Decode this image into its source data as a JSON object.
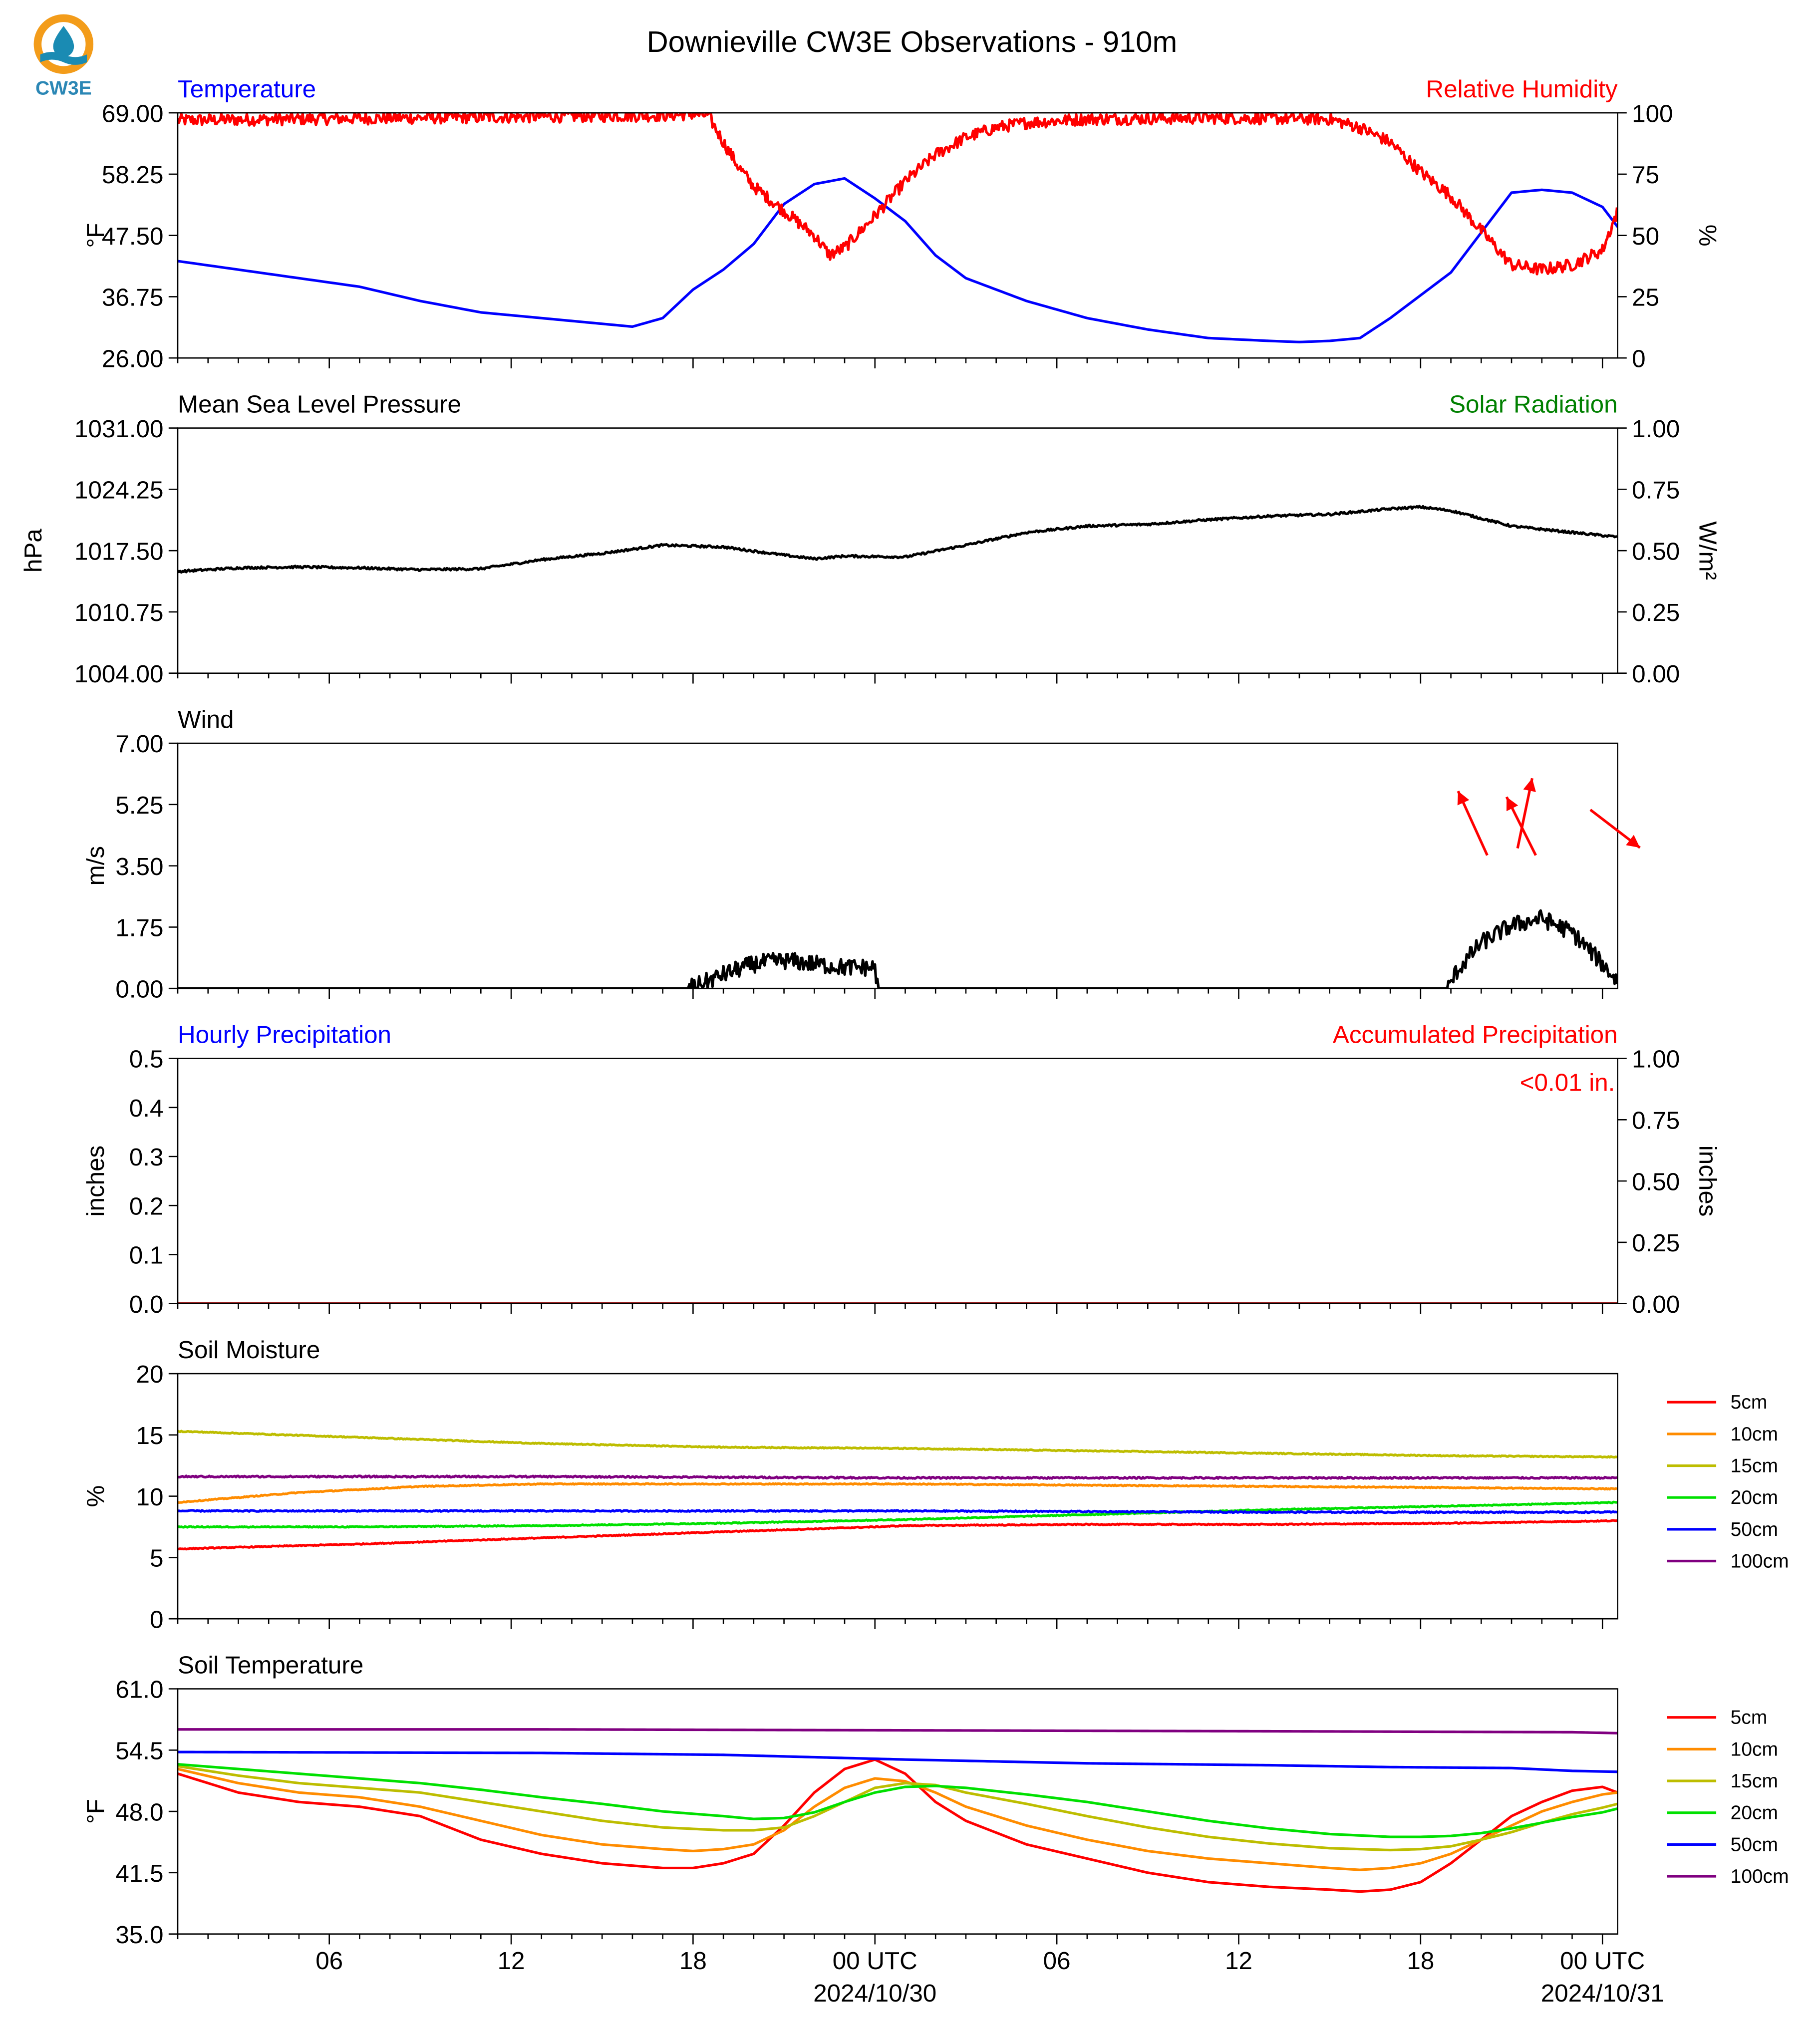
{
  "title": "Downieville CW3E Observations - 910m",
  "logo": {
    "text": "CW3E",
    "colors": {
      "ring": "#f39c1a",
      "water": "#1a8bb3",
      "text": "#2b87b5"
    }
  },
  "colors": {
    "blue": "#0000ff",
    "red": "#ff0000",
    "green": "#008000",
    "black": "#000000"
  },
  "time_axis": {
    "start_hour": 0,
    "end_hour": 47.5,
    "ticks": [
      {
        "hour": 5,
        "label": "06"
      },
      {
        "hour": 11,
        "label": "12"
      },
      {
        "hour": 17,
        "label": "18"
      },
      {
        "hour": 23,
        "label": "00 UTC",
        "date": "2024/10/30"
      },
      {
        "hour": 29,
        "label": "06"
      },
      {
        "hour": 35,
        "label": "12"
      },
      {
        "hour": 41,
        "label": "18"
      },
      {
        "hour": 47,
        "label": "00 UTC",
        "date": "2024/10/31"
      }
    ]
  },
  "legend_labels": [
    "5cm",
    "10cm",
    "15cm",
    "20cm",
    "50cm",
    "100cm"
  ],
  "legend_colors": [
    "#ff0000",
    "#ff8c00",
    "#bdbd00",
    "#00e000",
    "#0000ff",
    "#800080"
  ],
  "chart_data": [
    {
      "type": "line",
      "title_left": "Temperature",
      "title_right": "Relative Humidity",
      "ylabel_left": "°F",
      "ylabel_right": "%",
      "ylim_left": [
        26,
        69
      ],
      "yticks_left": [
        "69.00",
        "58.25",
        "47.50",
        "36.75",
        "26.00"
      ],
      "ylim_right": [
        0,
        100
      ],
      "yticks_right": [
        "100",
        "75",
        "50",
        "25",
        "0"
      ],
      "series": [
        {
          "color": "#0000ff",
          "axis": "left",
          "noise": 0,
          "x": [
            0,
            2,
            4,
            6,
            8,
            10,
            12,
            14,
            15,
            16,
            17,
            18,
            19,
            20,
            21,
            22,
            23,
            24,
            25,
            26,
            28,
            30,
            32,
            34,
            36,
            37,
            38,
            39,
            40,
            41,
            42,
            43,
            44,
            45,
            46,
            47,
            47.5
          ],
          "y": [
            43,
            41.5,
            40,
            38.5,
            36,
            34,
            33,
            32,
            31.5,
            33,
            38,
            41.5,
            46,
            53,
            56.5,
            57.5,
            54,
            50,
            44,
            40,
            36,
            33,
            31,
            29.5,
            29,
            28.8,
            29,
            29.5,
            33,
            37,
            41,
            48,
            55,
            55.5,
            55,
            52.5,
            49
          ]
        },
        {
          "color": "#ff0000",
          "axis": "right",
          "noise": 2.5,
          "x": [
            0,
            4,
            8,
            12,
            16,
            17,
            17.5,
            18,
            18.5,
            19,
            20,
            21,
            21.5,
            22,
            23,
            24,
            25,
            26,
            27,
            28,
            30,
            34,
            38,
            39,
            40,
            41,
            42,
            43,
            44,
            45,
            46,
            47,
            47.5
          ],
          "y": [
            97,
            97.5,
            98,
            98.5,
            99,
            99.5,
            99,
            88,
            78,
            70,
            60,
            50,
            42,
            45,
            58,
            72,
            83,
            90,
            94,
            96,
            97.5,
            98,
            97.5,
            94,
            88,
            76,
            66,
            52,
            38,
            36,
            38,
            44,
            60
          ]
        }
      ]
    },
    {
      "type": "line",
      "title_left": "Mean Sea Level Pressure",
      "title_right": "Solar Radiation",
      "ylabel_left": "hPa",
      "ylabel_right": "W/m²",
      "ylim_left": [
        1004,
        1031
      ],
      "yticks_left": [
        "1031.00",
        "1024.25",
        "1017.50",
        "1010.75",
        "1004.00"
      ],
      "ylim_right": [
        0,
        1
      ],
      "yticks_right": [
        "1.00",
        "0.75",
        "0.50",
        "0.25",
        "0.00"
      ],
      "series": [
        {
          "color": "#000000",
          "axis": "left",
          "noise": 0.12,
          "x": [
            0,
            2,
            4,
            6,
            8,
            10,
            12,
            14,
            16,
            18,
            20,
            21,
            22,
            24,
            26,
            28,
            30,
            32,
            34,
            36,
            38,
            40,
            41,
            42,
            44,
            46,
            47.5
          ],
          "y": [
            1015.2,
            1015.6,
            1015.7,
            1015.6,
            1015.4,
            1015.5,
            1016.5,
            1017.2,
            1018.1,
            1017.9,
            1017.0,
            1016.6,
            1016.9,
            1016.8,
            1018.1,
            1019.5,
            1020.2,
            1020.4,
            1020.9,
            1021.3,
            1021.5,
            1022.1,
            1022.3,
            1021.9,
            1020.2,
            1019.5,
            1019.0
          ]
        }
      ]
    },
    {
      "type": "line",
      "title_left": "Wind",
      "ylabel_left": "m/s",
      "ylim_left": [
        0,
        7
      ],
      "yticks_left": [
        "7.00",
        "5.25",
        "3.50",
        "1.75",
        "0.00"
      ],
      "series": [
        {
          "color": "#000000",
          "axis": "left",
          "noise": 0.25,
          "x": [
            0,
            16.8,
            17.2,
            18,
            19,
            20,
            21,
            22,
            22.9,
            23.0,
            23.1,
            41.9,
            42.2,
            43,
            44,
            45,
            46,
            47,
            47.5
          ],
          "y": [
            0,
            0,
            0.1,
            0.4,
            0.7,
            0.8,
            0.7,
            0.6,
            0.6,
            0.6,
            0,
            0,
            0.5,
            1.3,
            1.8,
            2.0,
            1.6,
            0.7,
            0.2
          ]
        }
      ]
    },
    {
      "type": "line",
      "title_left": "Hourly Precipitation",
      "title_right": "Accumulated Precipitation",
      "annotation": "<0.01 in.",
      "ylabel_left": "inches",
      "ylabel_right": "inches",
      "ylim_left": [
        0,
        0.5
      ],
      "yticks_left": [
        "0.5",
        "0.4",
        "0.3",
        "0.2",
        "0.1",
        "0.0"
      ],
      "ylim_right": [
        0,
        1
      ],
      "yticks_right": [
        "1.00",
        "0.75",
        "0.50",
        "0.25",
        "0.00"
      ],
      "series": [
        {
          "color": "#8b0000",
          "axis": "left",
          "noise": 0,
          "x": [
            0,
            47.5
          ],
          "y": [
            0,
            0
          ]
        }
      ]
    },
    {
      "type": "line",
      "title_left": "Soil Moisture",
      "ylabel_left": "%",
      "ylim_left": [
        0,
        20
      ],
      "yticks_left": [
        "20",
        "15",
        "10",
        "5",
        "0"
      ],
      "legend": true,
      "series": [
        {
          "name": "5cm",
          "color": "#ff0000",
          "noise": 0.04,
          "x": [
            0,
            6,
            12,
            18,
            23,
            24,
            30,
            36,
            42,
            47.5
          ],
          "y": [
            5.7,
            6.1,
            6.6,
            7.1,
            7.5,
            7.6,
            7.7,
            7.7,
            7.8,
            8.0
          ]
        },
        {
          "name": "10cm",
          "color": "#ff8c00",
          "noise": 0.04,
          "x": [
            0,
            4,
            8,
            12,
            18,
            24,
            30,
            36,
            42,
            47.5
          ],
          "y": [
            9.5,
            10.3,
            10.8,
            11.0,
            11.0,
            11.0,
            10.9,
            10.8,
            10.7,
            10.6
          ]
        },
        {
          "name": "15cm",
          "color": "#bdbd00",
          "noise": 0.04,
          "x": [
            0,
            6,
            12,
            18,
            24,
            30,
            36,
            42,
            47.5
          ],
          "y": [
            15.3,
            14.8,
            14.3,
            14.0,
            13.9,
            13.7,
            13.5,
            13.3,
            13.2
          ]
        },
        {
          "name": "20cm",
          "color": "#00e000",
          "noise": 0.04,
          "x": [
            0,
            6,
            12,
            18,
            24,
            30,
            36,
            42,
            47.5
          ],
          "y": [
            7.5,
            7.5,
            7.6,
            7.8,
            8.1,
            8.5,
            8.9,
            9.2,
            9.5
          ]
        },
        {
          "name": "50cm",
          "color": "#0000ff",
          "noise": 0.05,
          "x": [
            0,
            12,
            24,
            36,
            47.5
          ],
          "y": [
            8.8,
            8.8,
            8.8,
            8.7,
            8.7
          ]
        },
        {
          "name": "100cm",
          "color": "#800080",
          "noise": 0.06,
          "x": [
            0,
            12,
            24,
            36,
            47.5
          ],
          "y": [
            11.6,
            11.6,
            11.5,
            11.5,
            11.5
          ]
        }
      ]
    },
    {
      "type": "line",
      "title_left": "Soil Temperature",
      "ylabel_left": "°F",
      "ylim_left": [
        35,
        61
      ],
      "yticks_left": [
        "61.0",
        "54.5",
        "48.0",
        "41.5",
        "35.0"
      ],
      "legend": true,
      "series": [
        {
          "name": "5cm",
          "color": "#ff0000",
          "noise": 0,
          "x": [
            0,
            2,
            4,
            6,
            8,
            10,
            12,
            14,
            16,
            17,
            18,
            19,
            20,
            21,
            22,
            23,
            24,
            25,
            26,
            28,
            30,
            32,
            34,
            36,
            38,
            39,
            40,
            41,
            42,
            43,
            44,
            45,
            46,
            47,
            47.5
          ],
          "y": [
            52,
            50,
            49,
            48.5,
            47.5,
            45,
            43.5,
            42.5,
            42,
            42,
            42.5,
            43.5,
            46.5,
            50,
            52.5,
            53.5,
            52,
            49,
            47,
            44.5,
            43,
            41.5,
            40.5,
            40,
            39.7,
            39.5,
            39.7,
            40.5,
            42.5,
            45,
            47.5,
            49,
            50.2,
            50.6,
            50
          ]
        },
        {
          "name": "10cm",
          "color": "#ff8c00",
          "noise": 0,
          "x": [
            0,
            2,
            4,
            6,
            8,
            10,
            12,
            14,
            16,
            17,
            18,
            19,
            20,
            21,
            22,
            23,
            24,
            25,
            26,
            28,
            30,
            32,
            34,
            36,
            38,
            39,
            40,
            41,
            42,
            43,
            44,
            45,
            46,
            47,
            47.5
          ],
          "y": [
            52.5,
            51,
            50,
            49.5,
            48.5,
            47,
            45.5,
            44.5,
            44,
            43.8,
            44,
            44.5,
            46,
            48.5,
            50.5,
            51.5,
            51.2,
            50,
            48.5,
            46.5,
            45,
            43.8,
            43,
            42.5,
            42,
            41.8,
            42,
            42.5,
            43.5,
            45,
            46.5,
            48,
            49,
            49.8,
            50
          ]
        },
        {
          "name": "15cm",
          "color": "#bdbd00",
          "noise": 0,
          "x": [
            0,
            2,
            4,
            6,
            8,
            10,
            12,
            14,
            16,
            18,
            19,
            20,
            21,
            22,
            23,
            24,
            25,
            26,
            28,
            30,
            32,
            34,
            36,
            38,
            40,
            41,
            42,
            43,
            44,
            45,
            46,
            47,
            47.5
          ],
          "y": [
            52.8,
            51.8,
            51,
            50.5,
            50,
            49,
            48,
            47,
            46.3,
            46,
            46,
            46.3,
            47.5,
            49,
            50.5,
            51,
            50.8,
            50,
            48.8,
            47.5,
            46.3,
            45.3,
            44.6,
            44.1,
            43.9,
            44,
            44.3,
            45,
            45.8,
            46.8,
            47.7,
            48.4,
            48.8
          ]
        },
        {
          "name": "20cm",
          "color": "#00e000",
          "noise": 0,
          "x": [
            0,
            2,
            4,
            6,
            8,
            10,
            12,
            14,
            16,
            18,
            19,
            20,
            21,
            22,
            23,
            24,
            25,
            26,
            28,
            30,
            32,
            34,
            36,
            38,
            40,
            41,
            42,
            43,
            44,
            45,
            46,
            47,
            47.5
          ],
          "y": [
            53,
            52.5,
            52,
            51.5,
            51,
            50.3,
            49.5,
            48.8,
            48,
            47.5,
            47.2,
            47.3,
            47.9,
            49,
            50,
            50.6,
            50.7,
            50.5,
            49.8,
            49,
            48,
            47,
            46.2,
            45.6,
            45.3,
            45.3,
            45.4,
            45.7,
            46.2,
            46.8,
            47.4,
            47.9,
            48.3
          ]
        },
        {
          "name": "50cm",
          "color": "#0000ff",
          "noise": 0,
          "x": [
            0,
            12,
            18,
            24,
            30,
            36,
            40,
            44,
            46,
            47.5
          ],
          "y": [
            54.3,
            54.2,
            54.0,
            53.5,
            53.1,
            52.9,
            52.7,
            52.6,
            52.3,
            52.2
          ]
        },
        {
          "name": "100cm",
          "color": "#800080",
          "noise": 0,
          "x": [
            0,
            12,
            24,
            36,
            46,
            47.5
          ],
          "y": [
            56.7,
            56.7,
            56.6,
            56.5,
            56.4,
            56.3
          ]
        }
      ]
    }
  ],
  "wind_vectors": [
    {
      "hour": 43.2,
      "speed": 3.8,
      "dx": -1.0,
      "dy": -2.2
    },
    {
      "hour": 44.2,
      "speed": 4.0,
      "dx": 0.5,
      "dy": -2.4
    },
    {
      "hour": 44.8,
      "speed": 3.8,
      "dx": -1.0,
      "dy": -2.0
    },
    {
      "hour": 46.6,
      "speed": 5.1,
      "dx": 1.7,
      "dy": 1.3
    }
  ]
}
